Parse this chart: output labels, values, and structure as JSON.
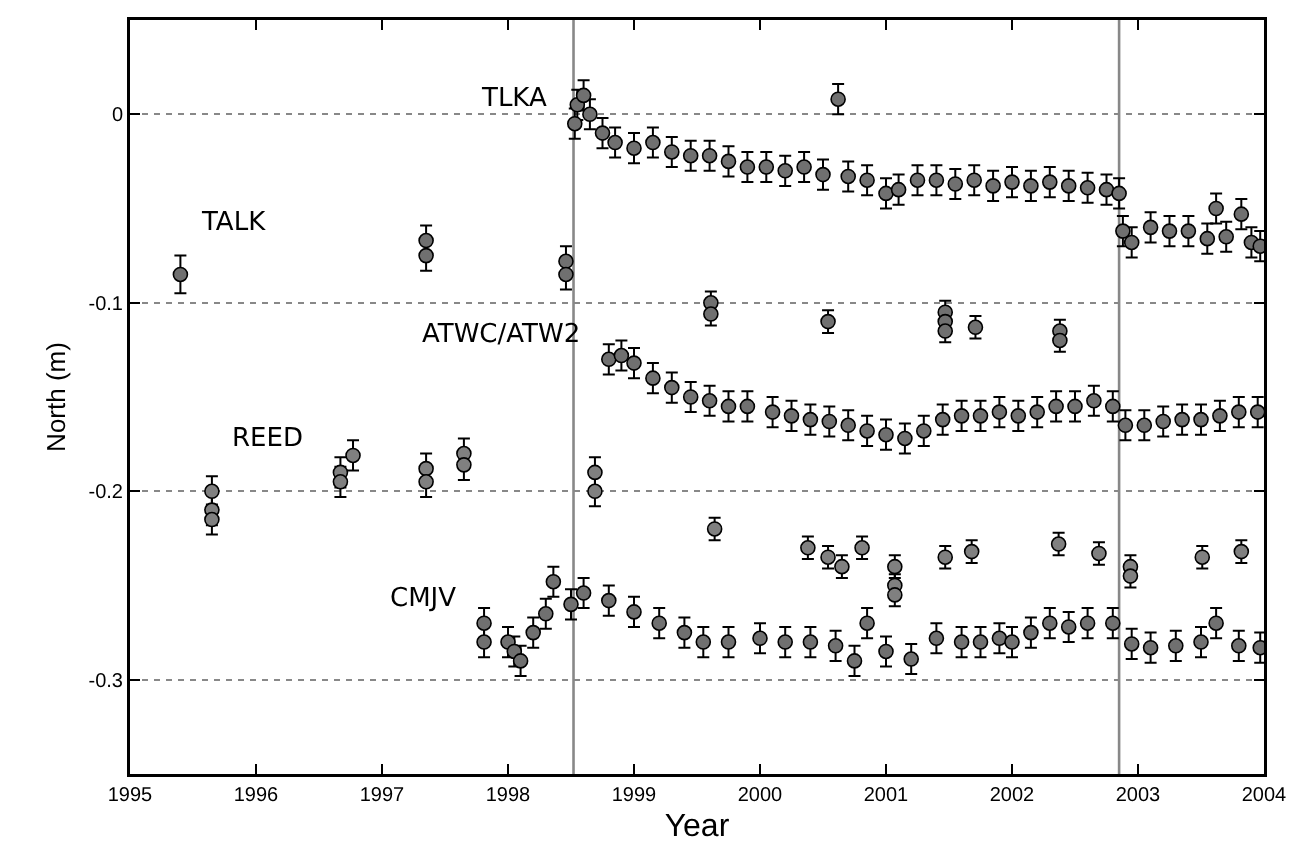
{
  "chart_data": {
    "type": "scatter",
    "xlabel": "Year",
    "ylabel": "North (m)",
    "xlim": [
      1995,
      2004
    ],
    "xticks": [
      1995,
      1996,
      1997,
      1998,
      1999,
      2000,
      2001,
      2002,
      2003,
      2004
    ],
    "ylim": [
      -0.35,
      0.05
    ],
    "yticks": [
      -0.3,
      -0.2,
      -0.1,
      0
    ],
    "grid": "y",
    "legend": false,
    "marker": "circle",
    "ref_lines": [
      {
        "axis": "x",
        "value": 1998.52,
        "color": "#888888"
      },
      {
        "axis": "x",
        "value": 2002.85,
        "color": "#888888"
      }
    ],
    "series": [
      {
        "name": "TLKA",
        "color": "#707070",
        "x": [
          1998.53,
          1998.55,
          1998.6,
          1998.65,
          1998.75,
          1998.85,
          1999.0,
          1999.15,
          1999.3,
          1999.45,
          1999.6,
          1999.75,
          1999.9,
          2000.05,
          2000.2,
          2000.35,
          2000.5,
          2000.62,
          2000.7,
          2000.85,
          2001.0,
          2001.1,
          2001.25,
          2001.4,
          2001.55,
          2001.7,
          2001.85,
          2002.0,
          2002.15,
          2002.3,
          2002.45,
          2002.6,
          2002.75,
          2002.85,
          2002.88,
          2002.95,
          2003.1,
          2003.25,
          2003.4,
          2003.55,
          2003.62,
          2003.7,
          2003.82,
          2003.9,
          2003.97
        ],
        "values": [
          -0.005,
          0.005,
          0.01,
          0.0,
          -0.01,
          -0.015,
          -0.018,
          -0.015,
          -0.02,
          -0.022,
          -0.022,
          -0.025,
          -0.028,
          -0.028,
          -0.03,
          -0.028,
          -0.032,
          0.008,
          -0.033,
          -0.035,
          -0.042,
          -0.04,
          -0.035,
          -0.035,
          -0.037,
          -0.035,
          -0.038,
          -0.036,
          -0.038,
          -0.036,
          -0.038,
          -0.039,
          -0.04,
          -0.042,
          -0.062,
          -0.068,
          -0.06,
          -0.062,
          -0.062,
          -0.066,
          -0.05,
          -0.065,
          -0.053,
          -0.068,
          -0.07
        ],
        "errors": [
          0.008,
          0.008,
          0.008,
          0.008,
          0.008,
          0.008,
          0.008,
          0.008,
          0.008,
          0.008,
          0.008,
          0.008,
          0.008,
          0.008,
          0.008,
          0.008,
          0.008,
          0.008,
          0.008,
          0.008,
          0.008,
          0.008,
          0.008,
          0.008,
          0.008,
          0.008,
          0.008,
          0.008,
          0.008,
          0.008,
          0.008,
          0.008,
          0.008,
          0.008,
          0.008,
          0.008,
          0.008,
          0.008,
          0.008,
          0.008,
          0.008,
          0.008,
          0.008,
          0.008,
          0.008
        ]
      },
      {
        "name": "TALK",
        "color": "#707070",
        "x": [
          1995.4,
          1997.35,
          1997.35,
          1998.46,
          1998.46,
          1999.61,
          1999.61,
          2000.54,
          2001.47,
          2001.47,
          2001.47,
          2001.71,
          2002.38,
          2002.38
        ],
        "values": [
          -0.085,
          -0.067,
          -0.075,
          -0.078,
          -0.085,
          -0.1,
          -0.106,
          -0.11,
          -0.105,
          -0.11,
          -0.115,
          -0.113,
          -0.115,
          -0.12
        ],
        "errors": [
          0.01,
          0.008,
          0.008,
          0.008,
          0.008,
          0.006,
          0.006,
          0.006,
          0.006,
          0.006,
          0.006,
          0.006,
          0.006,
          0.006
        ]
      },
      {
        "name": "ATWC/ATW2",
        "color": "#707070",
        "x": [
          1998.8,
          1998.9,
          1999.0,
          1999.15,
          1999.3,
          1999.45,
          1999.6,
          1999.75,
          1999.9,
          2000.1,
          2000.25,
          2000.4,
          2000.55,
          2000.7,
          2000.85,
          2001.0,
          2001.15,
          2001.3,
          2001.45,
          2001.6,
          2001.75,
          2001.9,
          2002.05,
          2002.2,
          2002.35,
          2002.5,
          2002.65,
          2002.8,
          2002.9,
          2003.05,
          2003.2,
          2003.35,
          2003.5,
          2003.65,
          2003.8,
          2003.95
        ],
        "values": [
          -0.13,
          -0.128,
          -0.132,
          -0.14,
          -0.145,
          -0.15,
          -0.152,
          -0.155,
          -0.155,
          -0.158,
          -0.16,
          -0.162,
          -0.163,
          -0.165,
          -0.168,
          -0.17,
          -0.172,
          -0.168,
          -0.162,
          -0.16,
          -0.16,
          -0.158,
          -0.16,
          -0.158,
          -0.155,
          -0.155,
          -0.152,
          -0.155,
          -0.165,
          -0.165,
          -0.163,
          -0.162,
          -0.162,
          -0.16,
          -0.158,
          -0.158
        ],
        "errors": [
          0.008,
          0.008,
          0.008,
          0.008,
          0.008,
          0.008,
          0.008,
          0.008,
          0.008,
          0.008,
          0.008,
          0.008,
          0.008,
          0.008,
          0.008,
          0.008,
          0.008,
          0.008,
          0.008,
          0.008,
          0.008,
          0.008,
          0.008,
          0.008,
          0.008,
          0.008,
          0.008,
          0.008,
          0.008,
          0.008,
          0.008,
          0.008,
          0.008,
          0.008,
          0.008,
          0.008
        ]
      },
      {
        "name": "REED",
        "color": "#808080",
        "x": [
          1995.65,
          1995.65,
          1995.65,
          1996.67,
          1996.67,
          1996.77,
          1997.35,
          1997.35,
          1997.65,
          1997.65,
          1998.69,
          1998.69,
          1999.64,
          2000.38,
          2000.54,
          2000.65,
          2000.81,
          2001.07,
          2001.07,
          2001.07,
          2001.47,
          2001.68,
          2002.37,
          2002.69,
          2002.94,
          2002.94,
          2003.51,
          2003.82
        ],
        "values": [
          -0.2,
          -0.21,
          -0.215,
          -0.19,
          -0.195,
          -0.181,
          -0.188,
          -0.195,
          -0.18,
          -0.186,
          -0.19,
          -0.2,
          -0.22,
          -0.23,
          -0.235,
          -0.24,
          -0.23,
          -0.24,
          -0.25,
          -0.255,
          -0.235,
          -0.232,
          -0.228,
          -0.233,
          -0.24,
          -0.245,
          -0.235,
          -0.232
        ],
        "errors": [
          0.008,
          0.008,
          0.008,
          0.008,
          0.008,
          0.008,
          0.008,
          0.008,
          0.008,
          0.008,
          0.008,
          0.008,
          0.006,
          0.006,
          0.006,
          0.006,
          0.006,
          0.006,
          0.006,
          0.006,
          0.006,
          0.006,
          0.006,
          0.006,
          0.006,
          0.006,
          0.006,
          0.006
        ]
      },
      {
        "name": "CMJV",
        "color": "#707070",
        "x": [
          1997.81,
          1997.81,
          1998.0,
          1998.05,
          1998.1,
          1998.2,
          1998.3,
          1998.36,
          1998.5,
          1998.6,
          1998.8,
          1999.0,
          1999.2,
          1999.4,
          1999.55,
          1999.75,
          2000.0,
          2000.2,
          2000.4,
          2000.6,
          2000.75,
          2000.85,
          2001.0,
          2001.2,
          2001.4,
          2001.6,
          2001.75,
          2001.9,
          2002.0,
          2002.15,
          2002.3,
          2002.45,
          2002.6,
          2002.8,
          2002.95,
          2003.1,
          2003.3,
          2003.5,
          2003.62,
          2003.8,
          2003.97
        ],
        "values": [
          -0.27,
          -0.28,
          -0.28,
          -0.285,
          -0.29,
          -0.275,
          -0.265,
          -0.248,
          -0.26,
          -0.254,
          -0.258,
          -0.264,
          -0.27,
          -0.275,
          -0.28,
          -0.28,
          -0.278,
          -0.28,
          -0.28,
          -0.282,
          -0.29,
          -0.27,
          -0.285,
          -0.289,
          -0.278,
          -0.28,
          -0.28,
          -0.278,
          -0.28,
          -0.275,
          -0.27,
          -0.272,
          -0.27,
          -0.27,
          -0.281,
          -0.283,
          -0.282,
          -0.28,
          -0.27,
          -0.282,
          -0.283
        ],
        "errors": [
          0.008,
          0.008,
          0.008,
          0.008,
          0.008,
          0.008,
          0.008,
          0.008,
          0.008,
          0.008,
          0.008,
          0.008,
          0.008,
          0.008,
          0.008,
          0.008,
          0.008,
          0.008,
          0.008,
          0.008,
          0.008,
          0.008,
          0.008,
          0.008,
          0.008,
          0.008,
          0.008,
          0.008,
          0.008,
          0.008,
          0.008,
          0.008,
          0.008,
          0.008,
          0.008,
          0.008,
          0.008,
          0.008,
          0.008,
          0.008,
          0.008
        ]
      }
    ]
  }
}
